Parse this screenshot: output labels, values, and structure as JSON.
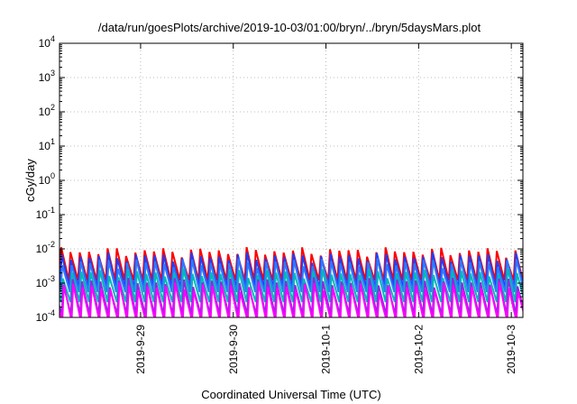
{
  "chart_data": {
    "type": "line",
    "title": "/data/run/goesPlots/archive/2019-10-03/01:00/bryn/../bryn/5daysMars.plot",
    "xlabel": "Coordinated Universal Time (UTC)",
    "ylabel": "cGy/day",
    "yscale": "log",
    "ylim": [
      0.0001,
      10000
    ],
    "xlim": [
      "2019-09-28 03:00",
      "2019-10-03 03:00"
    ],
    "x_ticks": [
      "2019-9-29",
      "2019-9-30",
      "2019-10-1",
      "2019-10-2",
      "2019-10-3"
    ],
    "y_ticks": [
      {
        "base": "10",
        "exp": "-4",
        "value": 0.0001
      },
      {
        "base": "10",
        "exp": "-3",
        "value": 0.001
      },
      {
        "base": "10",
        "exp": "-2",
        "value": 0.01
      },
      {
        "base": "10",
        "exp": "-1",
        "value": 0.1
      },
      {
        "base": "10",
        "exp": "0",
        "value": 1
      },
      {
        "base": "10",
        "exp": "1",
        "value": 10
      },
      {
        "base": "10",
        "exp": "2",
        "value": 100
      },
      {
        "base": "10",
        "exp": "3",
        "value": 1000
      },
      {
        "base": "10",
        "exp": "4",
        "value": 10000
      }
    ],
    "grid": true,
    "legend": "none",
    "pattern": "sawtooth, period about 0.1 day",
    "cycles_per_day": 10,
    "series": [
      {
        "color": "#ff0000",
        "peak": 0.0085,
        "trough": 0.0012
      },
      {
        "color": "#1f3fff",
        "peak": 0.006,
        "trough": 0.00075
      },
      {
        "color": "#2f78ff",
        "peak": 0.004,
        "trough": 0.00055
      },
      {
        "color": "#00b8b8",
        "peak": 0.002,
        "trough": 0.00028
      },
      {
        "color": "#8a2be2",
        "peak": 0.0011,
        "trough": 0.00012
      },
      {
        "color": "#ff00ff",
        "peak": 0.0008,
        "trough": 8e-05
      }
    ]
  }
}
